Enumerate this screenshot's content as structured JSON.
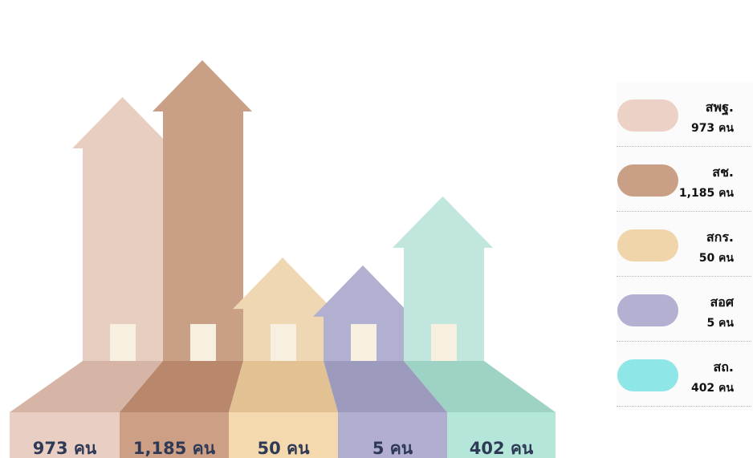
{
  "chart_data": {
    "type": "bar",
    "categories": [
      "สพฐ.",
      "สช.",
      "สกร.",
      "สอศ",
      "สถ."
    ],
    "values": [
      973,
      1185,
      50,
      5,
      402
    ],
    "unit": "คน",
    "bar_labels": [
      "973 คน",
      "1,185 คน",
      "50 คน",
      "5 คน",
      "402 คน"
    ],
    "colors": {
      "house": [
        "#e7cec1",
        "#c9a085",
        "#efd7b3",
        "#b2b0d1",
        "#c0e6dd"
      ],
      "top_face": [
        "#d6b5a6",
        "#b9876b",
        "#e2c193",
        "#9d9bbd",
        "#9ed2c4"
      ],
      "front_face": [
        "#e9cec3",
        "#cd9f84",
        "#f4d8ae",
        "#b1aed0",
        "#b5e6da"
      ],
      "window": "#f7efe0",
      "legend_swatch": [
        "#ecd2c6",
        "#c9a085",
        "#f0d5ab",
        "#b3b0d1",
        "#8ee6e6"
      ]
    },
    "legend_position": "right",
    "legend": [
      {
        "name": "สพฐ.",
        "value": "973 คน"
      },
      {
        "name": "สช.",
        "value": "1,185 คน"
      },
      {
        "name": "สกร.",
        "value": "50 คน"
      },
      {
        "name": "สอศ",
        "value": "5 คน"
      },
      {
        "name": "สถ.",
        "value": "402 คน"
      }
    ]
  }
}
